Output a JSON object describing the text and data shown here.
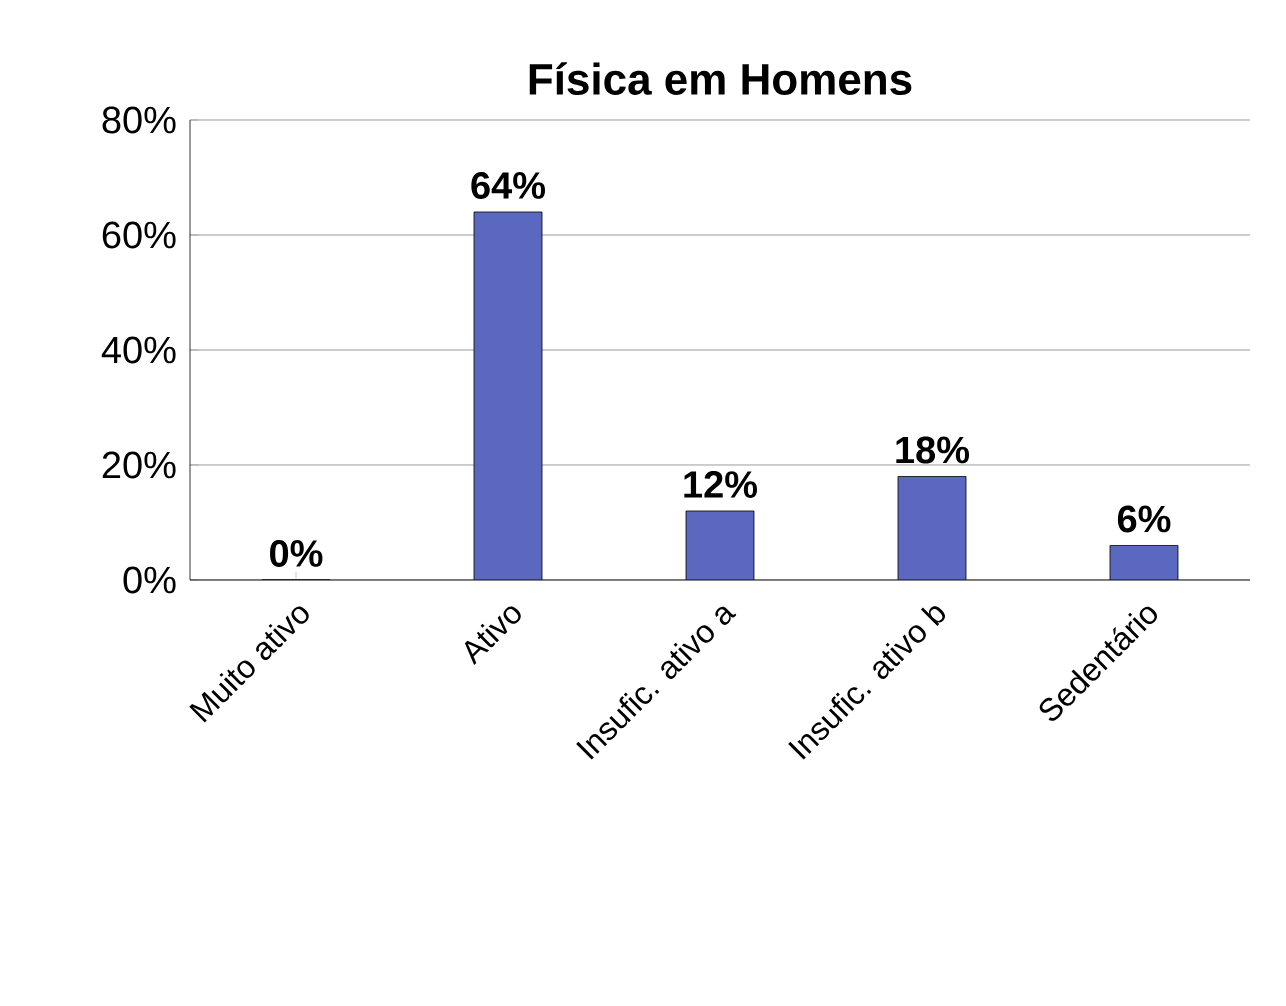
{
  "chart_data": {
    "type": "bar",
    "title": "Física em Homens",
    "categories": [
      "Muito ativo",
      "Ativo",
      "Insufic. ativo a",
      "Insufic. ativo b",
      "Sedentário"
    ],
    "values": [
      0,
      64,
      12,
      18,
      6
    ],
    "value_labels": [
      "0%",
      "64%",
      "12%",
      "18%",
      "6%"
    ],
    "color": "#5a68c0",
    "ylim": [
      0,
      80
    ],
    "yticks": [
      {
        "value": 0,
        "label": "0%"
      },
      {
        "value": 20,
        "label": "20%"
      },
      {
        "value": 40,
        "label": "40%"
      },
      {
        "value": 60,
        "label": "60%"
      },
      {
        "value": 80,
        "label": "80%"
      }
    ],
    "grid": "y"
  }
}
